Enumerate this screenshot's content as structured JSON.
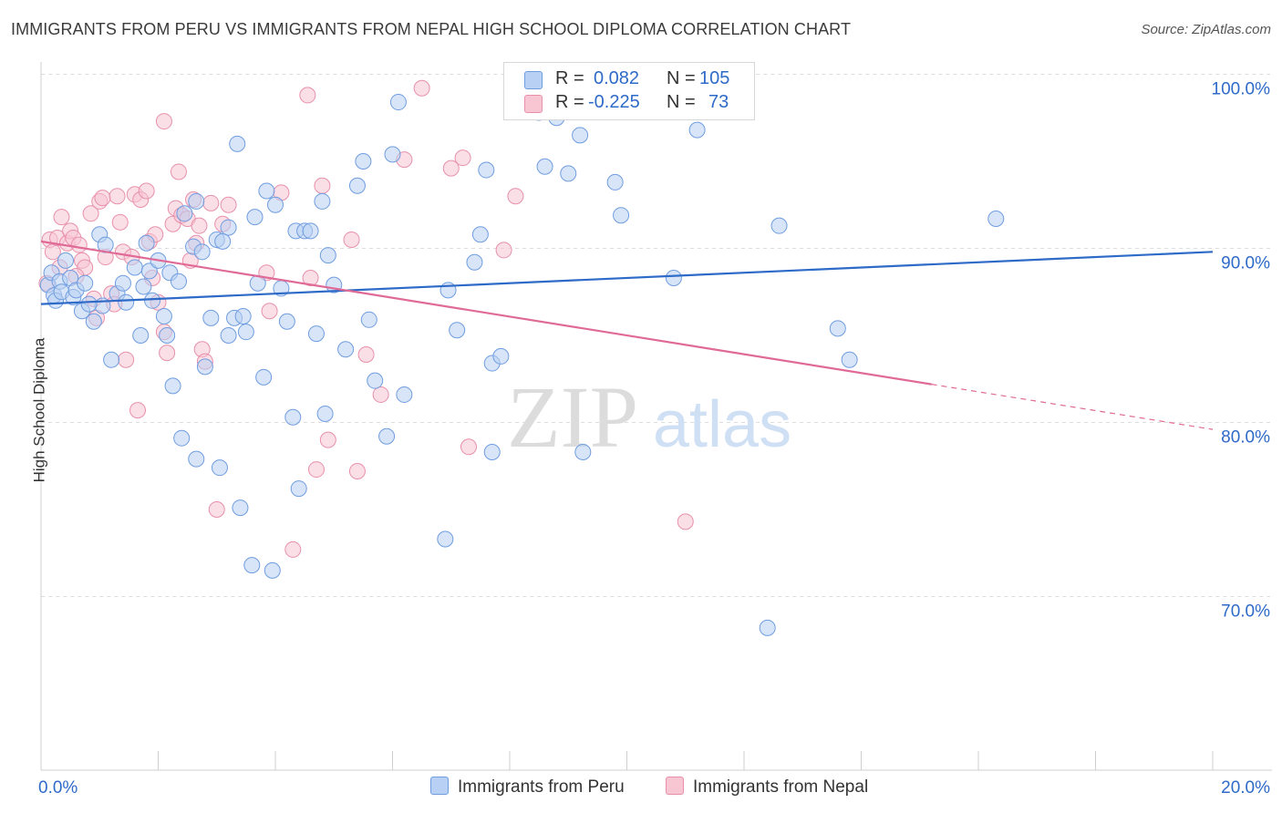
{
  "title": "IMMIGRANTS FROM PERU VS IMMIGRANTS FROM NEPAL HIGH SCHOOL DIPLOMA CORRELATION CHART",
  "source": "Source: ZipAtlas.com",
  "watermark": {
    "zip": "ZIP",
    "atlas": "atlas"
  },
  "colors": {
    "peru_fill": "#b8d0f3",
    "peru_stroke": "#6f9de0",
    "peru_line": "#2e6ac8",
    "nepal_fill": "#f8c5d3",
    "nepal_stroke": "#e890ab",
    "nepal_line": "#e06a96",
    "tick_text": "#2e6ac8",
    "grid": "#dddddd"
  },
  "legend": {
    "rows": [
      {
        "r_label": "R =",
        "r_value": "0.082",
        "n_label": "N =",
        "n_value": "105"
      },
      {
        "r_label": "R =",
        "r_value": "-0.225",
        "n_label": "N =",
        "n_value": "73"
      }
    ]
  },
  "chart_data": {
    "type": "scatter",
    "title": "IMMIGRANTS FROM PERU VS IMMIGRANTS FROM NEPAL HIGH SCHOOL DIPLOMA CORRELATION CHART",
    "xlabel": "",
    "ylabel": "High School Diploma",
    "xlim": [
      0,
      20
    ],
    "ylim": [
      60.5,
      103
    ],
    "x_tick_labels": [
      "0.0%",
      "20.0%"
    ],
    "y_ticks": [
      70,
      80,
      90,
      100
    ],
    "y_tick_labels": [
      "70.0%",
      "80.0%",
      "90.0%",
      "100.0%"
    ],
    "grid": true,
    "series": [
      {
        "name": "Immigrants from Peru",
        "R": 0.082,
        "N": 105,
        "trend": {
          "x0": 0,
          "y0": 86.8,
          "x1": 20,
          "y1": 89.8,
          "dashed_from": null
        },
        "points": [
          [
            0.12,
            87.9
          ],
          [
            0.18,
            88.6
          ],
          [
            0.22,
            87.3
          ],
          [
            0.25,
            87.0
          ],
          [
            0.32,
            88.1
          ],
          [
            0.35,
            87.5
          ],
          [
            0.42,
            89.3
          ],
          [
            0.5,
            88.3
          ],
          [
            0.55,
            87.2
          ],
          [
            0.6,
            87.6
          ],
          [
            0.75,
            88.0
          ],
          [
            0.7,
            86.4
          ],
          [
            0.9,
            85.8
          ],
          [
            1.0,
            90.8
          ],
          [
            1.05,
            86.7
          ],
          [
            1.1,
            90.2
          ],
          [
            1.2,
            83.6
          ],
          [
            1.3,
            87.4
          ],
          [
            1.4,
            88.0
          ],
          [
            1.45,
            86.9
          ],
          [
            1.6,
            88.9
          ],
          [
            1.7,
            85.0
          ],
          [
            1.75,
            87.8
          ],
          [
            1.8,
            90.3
          ],
          [
            1.85,
            88.7
          ],
          [
            1.9,
            87.0
          ],
          [
            2.0,
            89.3
          ],
          [
            2.1,
            86.1
          ],
          [
            2.15,
            85.0
          ],
          [
            2.2,
            88.6
          ],
          [
            2.25,
            82.1
          ],
          [
            2.35,
            88.1
          ],
          [
            2.4,
            79.1
          ],
          [
            2.45,
            92.0
          ],
          [
            2.6,
            90.1
          ],
          [
            2.65,
            77.9
          ],
          [
            2.65,
            92.7
          ],
          [
            2.75,
            89.8
          ],
          [
            2.8,
            83.2
          ],
          [
            2.9,
            86.0
          ],
          [
            3.0,
            90.5
          ],
          [
            3.05,
            77.4
          ],
          [
            3.1,
            90.4
          ],
          [
            3.2,
            91.2
          ],
          [
            3.2,
            85.0
          ],
          [
            3.3,
            86.0
          ],
          [
            3.4,
            75.1
          ],
          [
            3.35,
            96.0
          ],
          [
            3.45,
            86.1
          ],
          [
            3.5,
            85.2
          ],
          [
            3.6,
            71.8
          ],
          [
            3.65,
            91.8
          ],
          [
            3.7,
            88.0
          ],
          [
            3.8,
            82.6
          ],
          [
            3.85,
            93.3
          ],
          [
            3.95,
            71.5
          ],
          [
            4.0,
            92.5
          ],
          [
            4.1,
            87.7
          ],
          [
            4.2,
            85.8
          ],
          [
            4.3,
            80.3
          ],
          [
            4.35,
            91.0
          ],
          [
            4.4,
            76.2
          ],
          [
            4.5,
            91.0
          ],
          [
            4.6,
            91.0
          ],
          [
            4.7,
            85.1
          ],
          [
            4.8,
            92.7
          ],
          [
            4.85,
            80.5
          ],
          [
            4.9,
            89.6
          ],
          [
            5.0,
            87.9
          ],
          [
            5.2,
            84.2
          ],
          [
            5.4,
            93.6
          ],
          [
            5.5,
            95.0
          ],
          [
            5.6,
            85.9
          ],
          [
            5.7,
            82.4
          ],
          [
            5.9,
            79.2
          ],
          [
            6.0,
            95.4
          ],
          [
            6.1,
            98.4
          ],
          [
            6.2,
            81.6
          ],
          [
            6.9,
            73.3
          ],
          [
            6.95,
            87.6
          ],
          [
            7.1,
            85.3
          ],
          [
            7.4,
            89.2
          ],
          [
            7.5,
            90.8
          ],
          [
            7.6,
            94.5
          ],
          [
            7.7,
            78.3
          ],
          [
            7.7,
            83.4
          ],
          [
            7.85,
            83.8
          ],
          [
            8.5,
            97.8
          ],
          [
            8.6,
            94.7
          ],
          [
            8.8,
            97.5
          ],
          [
            9.0,
            94.3
          ],
          [
            9.2,
            96.5
          ],
          [
            9.25,
            78.3
          ],
          [
            9.8,
            93.8
          ],
          [
            9.9,
            91.9
          ],
          [
            10.2,
            97.9
          ],
          [
            10.3,
            99.3
          ],
          [
            10.8,
            88.3
          ],
          [
            11.2,
            96.8
          ],
          [
            12.4,
            68.2
          ],
          [
            12.6,
            91.3
          ],
          [
            13.6,
            85.4
          ],
          [
            13.8,
            83.6
          ],
          [
            16.3,
            91.7
          ],
          [
            0.82,
            86.8
          ]
        ]
      },
      {
        "name": "Immigrants from Nepal",
        "R": -0.225,
        "N": 73,
        "trend": {
          "x0": 0,
          "y0": 90.4,
          "x1": 20,
          "y1": 79.6,
          "dashed_from": 15.2
        },
        "points": [
          [
            0.1,
            88.0
          ],
          [
            0.15,
            90.5
          ],
          [
            0.2,
            89.8
          ],
          [
            0.28,
            90.6
          ],
          [
            0.32,
            88.9
          ],
          [
            0.35,
            91.8
          ],
          [
            0.45,
            90.3
          ],
          [
            0.5,
            91.0
          ],
          [
            0.55,
            90.6
          ],
          [
            0.65,
            90.2
          ],
          [
            0.7,
            89.3
          ],
          [
            0.75,
            88.9
          ],
          [
            0.85,
            92.0
          ],
          [
            0.9,
            87.1
          ],
          [
            0.95,
            86.0
          ],
          [
            1.0,
            92.7
          ],
          [
            1.05,
            92.9
          ],
          [
            1.1,
            89.5
          ],
          [
            1.2,
            87.4
          ],
          [
            1.25,
            86.8
          ],
          [
            1.3,
            93.0
          ],
          [
            1.35,
            91.5
          ],
          [
            1.4,
            89.8
          ],
          [
            1.45,
            83.6
          ],
          [
            1.55,
            89.5
          ],
          [
            1.6,
            93.1
          ],
          [
            1.65,
            80.7
          ],
          [
            1.7,
            92.8
          ],
          [
            1.8,
            93.3
          ],
          [
            1.85,
            90.4
          ],
          [
            1.9,
            88.3
          ],
          [
            1.95,
            90.8
          ],
          [
            2.0,
            86.9
          ],
          [
            2.1,
            85.2
          ],
          [
            2.15,
            84.0
          ],
          [
            2.1,
            97.3
          ],
          [
            2.25,
            91.4
          ],
          [
            2.3,
            92.3
          ],
          [
            2.35,
            94.4
          ],
          [
            2.4,
            91.9
          ],
          [
            2.5,
            91.7
          ],
          [
            2.55,
            89.3
          ],
          [
            2.6,
            92.8
          ],
          [
            2.65,
            90.3
          ],
          [
            2.7,
            91.3
          ],
          [
            2.75,
            84.2
          ],
          [
            2.8,
            83.5
          ],
          [
            2.9,
            92.6
          ],
          [
            3.0,
            75.0
          ],
          [
            3.1,
            91.4
          ],
          [
            3.2,
            92.5
          ],
          [
            3.85,
            88.6
          ],
          [
            3.9,
            86.4
          ],
          [
            4.1,
            93.2
          ],
          [
            4.3,
            72.7
          ],
          [
            4.55,
            98.8
          ],
          [
            4.6,
            88.3
          ],
          [
            4.7,
            77.3
          ],
          [
            4.8,
            93.6
          ],
          [
            4.9,
            79.0
          ],
          [
            5.3,
            90.5
          ],
          [
            5.4,
            77.2
          ],
          [
            5.55,
            83.9
          ],
          [
            5.8,
            81.6
          ],
          [
            6.2,
            95.1
          ],
          [
            6.5,
            99.2
          ],
          [
            7.0,
            94.6
          ],
          [
            7.2,
            95.2
          ],
          [
            7.3,
            78.6
          ],
          [
            7.9,
            89.9
          ],
          [
            8.1,
            93.0
          ],
          [
            11.0,
            74.3
          ],
          [
            0.6,
            88.4
          ]
        ]
      }
    ]
  },
  "bottom_legend": [
    "Immigrants from Peru",
    "Immigrants from Nepal"
  ]
}
